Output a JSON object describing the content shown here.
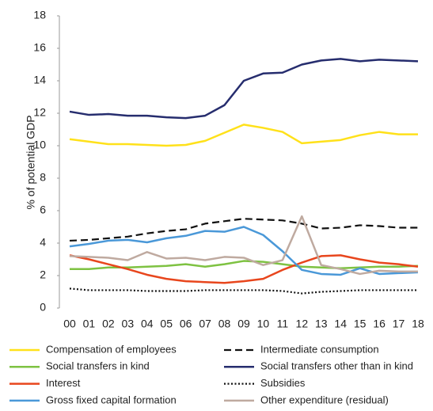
{
  "chart_data": {
    "type": "line",
    "y_label": "% of potential GDP",
    "categories": [
      "00",
      "01",
      "02",
      "03",
      "04",
      "05",
      "06",
      "07",
      "08",
      "09",
      "10",
      "11",
      "12",
      "13",
      "14",
      "15",
      "16",
      "17",
      "18"
    ],
    "ylim": [
      0,
      18
    ],
    "yticks": [
      0,
      2,
      4,
      6,
      8,
      10,
      12,
      14,
      16,
      18
    ],
    "grid": false,
    "series": [
      {
        "name": "Compensation of employees",
        "color": "#ffe11a",
        "dash": "solid",
        "values": [
          10.4,
          10.25,
          10.1,
          10.1,
          10.05,
          10.0,
          10.05,
          10.3,
          10.8,
          11.3,
          11.1,
          10.85,
          10.15,
          10.25,
          10.35,
          10.65,
          10.85,
          10.7,
          10.7
        ]
      },
      {
        "name": "Intermediate consumption",
        "color": "#111111",
        "dash": "dashed",
        "values": [
          4.15,
          4.2,
          4.3,
          4.4,
          4.6,
          4.75,
          4.85,
          5.2,
          5.35,
          5.5,
          5.45,
          5.4,
          5.2,
          4.9,
          4.95,
          5.1,
          5.05,
          4.95,
          4.95
        ]
      },
      {
        "name": "Social transfers in kind",
        "color": "#7ec242",
        "dash": "solid",
        "values": [
          2.4,
          2.4,
          2.5,
          2.5,
          2.55,
          2.6,
          2.7,
          2.55,
          2.7,
          2.9,
          2.85,
          2.7,
          2.55,
          2.5,
          2.45,
          2.5,
          2.55,
          2.55,
          2.6
        ]
      },
      {
        "name": "Social transfers other than in kind",
        "color": "#262d6e",
        "dash": "solid",
        "values": [
          12.1,
          11.9,
          11.95,
          11.85,
          11.85,
          11.75,
          11.7,
          11.85,
          12.5,
          14.0,
          14.45,
          14.5,
          15.0,
          15.25,
          15.35,
          15.2,
          15.3,
          15.25,
          15.2
        ]
      },
      {
        "name": "Interest",
        "color": "#e8461d",
        "dash": "solid",
        "values": [
          3.25,
          3.0,
          2.7,
          2.4,
          2.05,
          1.8,
          1.65,
          1.6,
          1.55,
          1.65,
          1.8,
          2.35,
          2.8,
          3.2,
          3.25,
          3.0,
          2.8,
          2.7,
          2.55
        ]
      },
      {
        "name": "Subsidies",
        "color": "#111111",
        "dash": "dotted",
        "values": [
          1.2,
          1.1,
          1.1,
          1.1,
          1.05,
          1.05,
          1.05,
          1.1,
          1.1,
          1.1,
          1.1,
          1.05,
          0.9,
          1.0,
          1.05,
          1.1,
          1.1,
          1.1,
          1.1
        ]
      },
      {
        "name": "Gross fixed capital formation",
        "color": "#4a98d8",
        "dash": "solid",
        "values": [
          3.8,
          3.95,
          4.15,
          4.2,
          4.05,
          4.3,
          4.45,
          4.75,
          4.7,
          5.0,
          4.5,
          3.5,
          2.35,
          2.1,
          2.05,
          2.45,
          2.1,
          2.15,
          2.2
        ]
      },
      {
        "name": "Other expenditure (residual)",
        "color": "#bfaaa0",
        "dash": "solid",
        "values": [
          3.2,
          3.15,
          3.1,
          2.95,
          3.45,
          3.05,
          3.1,
          2.95,
          3.15,
          3.1,
          2.65,
          2.95,
          5.65,
          2.65,
          2.4,
          2.1,
          2.3,
          2.25,
          2.25
        ]
      }
    ]
  }
}
